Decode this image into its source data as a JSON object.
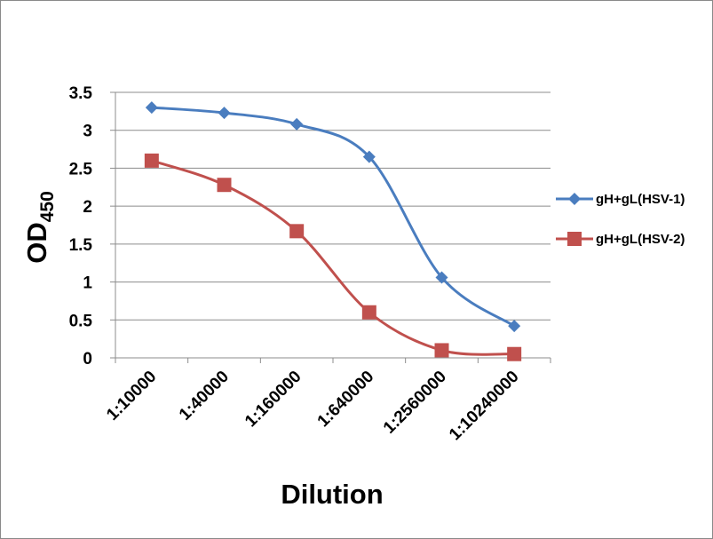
{
  "chart_data": {
    "type": "line",
    "categories": [
      "1:10000",
      "1:40000",
      "1:160000",
      "1:640000",
      "1:2560000",
      "1:10240000"
    ],
    "series": [
      {
        "name": "gH+gL(HSV-1)",
        "values": [
          3.3,
          3.23,
          3.08,
          2.65,
          1.06,
          0.42
        ],
        "color": "#4a7dbf",
        "marker": "diamond"
      },
      {
        "name": "gH+gL(HSV-2)",
        "values": [
          2.6,
          2.28,
          1.67,
          0.6,
          0.1,
          0.05
        ],
        "color": "#c0504d",
        "marker": "square"
      }
    ],
    "ylabel_main": "OD",
    "ylabel_sub": "450",
    "xlabel": "Dilution",
    "ylim": [
      0,
      3.5
    ],
    "yticks": [
      "0",
      "0.5",
      "1",
      "1.5",
      "2",
      "2.5",
      "3",
      "3.5"
    ],
    "grid": true,
    "legend_position": "right"
  }
}
